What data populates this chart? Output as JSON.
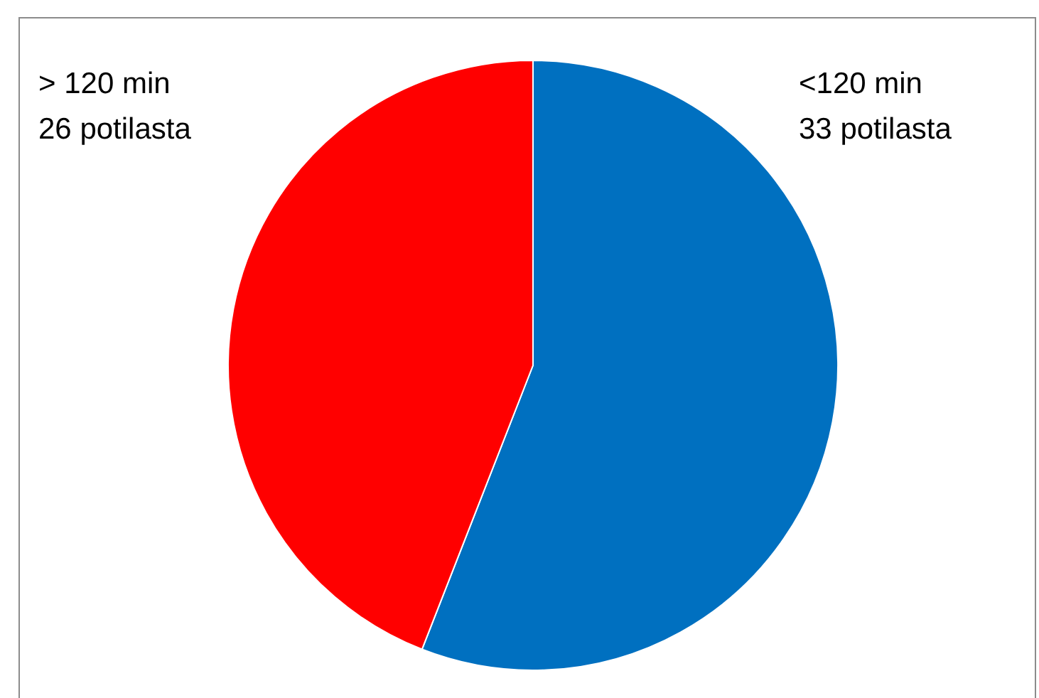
{
  "chart_data": {
    "type": "pie",
    "categories": [
      "<120 min",
      "> 120 min"
    ],
    "values": [
      33,
      26
    ],
    "colors": [
      "#0070c0",
      "#ff0000"
    ],
    "value_labels": [
      "33 potilasta",
      "26 potilasta"
    ],
    "legend": false
  }
}
